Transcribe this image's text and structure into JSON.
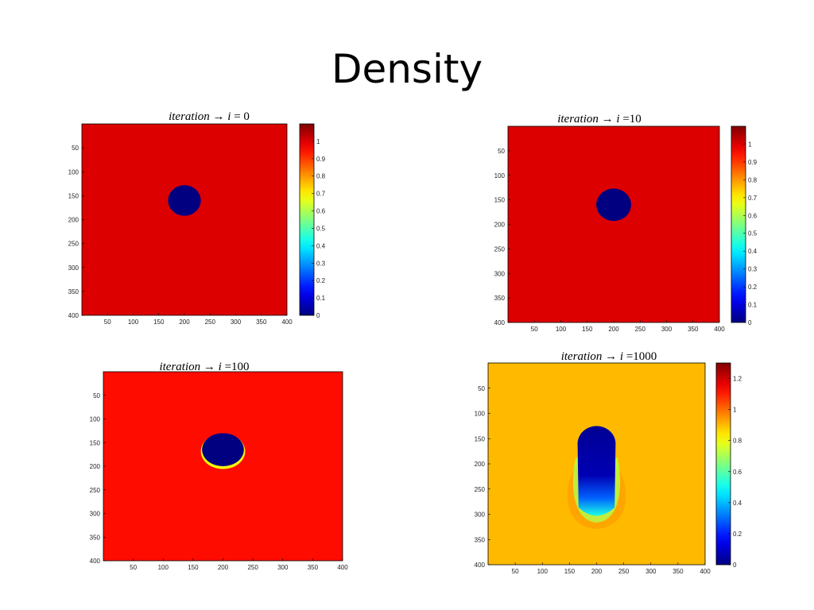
{
  "slide": {
    "title": "Density"
  },
  "chart_data": [
    {
      "type": "heatmap",
      "title": "iteration → i = 0",
      "title_parts": {
        "word": "iteration",
        "var": "i",
        "eq": "= 0"
      },
      "xticks": [
        50,
        100,
        150,
        200,
        250,
        300,
        350,
        400
      ],
      "yticks": [
        50,
        100,
        150,
        200,
        250,
        300,
        350,
        400
      ],
      "xlim": [
        0,
        400
      ],
      "ylim": [
        0,
        400
      ],
      "colorbar_ticks": [
        0,
        0.1,
        0.2,
        0.3,
        0.4,
        0.5,
        0.6,
        0.7,
        0.8,
        0.9,
        1
      ],
      "colorbar_range": [
        0,
        1.1
      ],
      "background_value": 1.0,
      "obstacle": {
        "cx": 200,
        "cy": 160,
        "r": 32,
        "value": 0
      },
      "colormap": "jet"
    },
    {
      "type": "heatmap",
      "title": "iteration → i = 10",
      "title_parts": {
        "word": "iteration",
        "var": "i",
        "eq": "=10"
      },
      "xticks": [
        50,
        100,
        150,
        200,
        250,
        300,
        350,
        400
      ],
      "yticks": [
        50,
        100,
        150,
        200,
        250,
        300,
        350,
        400
      ],
      "xlim": [
        0,
        400
      ],
      "ylim": [
        0,
        400
      ],
      "colorbar_ticks": [
        0,
        0.1,
        0.2,
        0.3,
        0.4,
        0.5,
        0.6,
        0.7,
        0.8,
        0.9,
        1
      ],
      "colorbar_range": [
        0,
        1.1
      ],
      "background_value": 1.0,
      "obstacle": {
        "cx": 200,
        "cy": 160,
        "r": 33,
        "value": 0
      },
      "colormap": "jet"
    },
    {
      "type": "heatmap",
      "title": "iteration → i = 100",
      "title_parts": {
        "word": "iteration",
        "var": "i",
        "eq": "=100"
      },
      "xticks": [
        50,
        100,
        150,
        200,
        250,
        300,
        350,
        400
      ],
      "yticks": [
        50,
        100,
        150,
        200,
        250,
        300,
        350,
        400
      ],
      "xlim": [
        0,
        400
      ],
      "ylim": [
        0,
        400
      ],
      "background_value": 0.95,
      "obstacle": {
        "cx": 200,
        "cy": 165,
        "r": 35,
        "value": 0
      },
      "colormap": "jet"
    },
    {
      "type": "heatmap",
      "title": "iteration → i = 1000",
      "title_parts": {
        "word": "iteration",
        "var": "i",
        "eq": "=1000"
      },
      "xticks": [
        50,
        100,
        150,
        200,
        250,
        300,
        350,
        400
      ],
      "yticks": [
        50,
        100,
        150,
        200,
        250,
        300,
        350,
        400
      ],
      "xlim": [
        0,
        400
      ],
      "ylim": [
        0,
        400
      ],
      "colorbar_ticks": [
        0,
        0.2,
        0.4,
        0.6,
        0.8,
        1,
        1.2
      ],
      "colorbar_range": [
        0,
        1.3
      ],
      "background_value": 0.9,
      "obstacle": {
        "cx": 200,
        "cy": 160,
        "r": 35,
        "value": 0
      },
      "wake": {
        "length_to_y": 310,
        "value": 0.2
      },
      "colormap": "jet"
    }
  ]
}
